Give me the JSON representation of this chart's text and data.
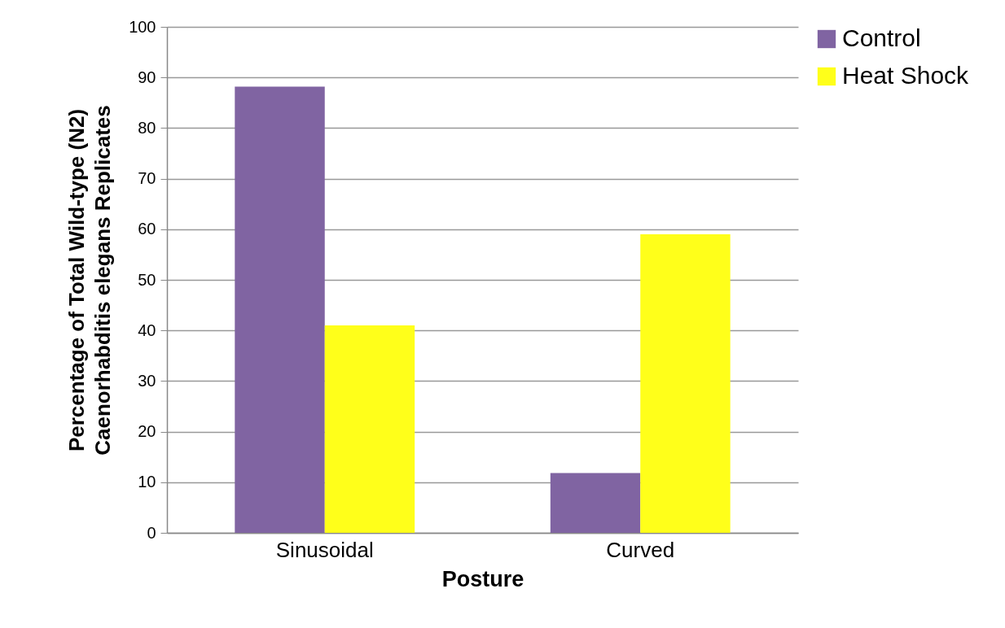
{
  "chart_data": {
    "type": "bar",
    "xlabel": "Posture",
    "ylabel": "Percentage of Total Wild-type (N2) Caenorhabditis elegans Replicates",
    "categories": [
      "Sinusoidal",
      "Curved"
    ],
    "series": [
      {
        "name": "Control",
        "color": "#8064a2",
        "values": [
          88.2,
          11.8
        ]
      },
      {
        "name": "Heat Shock",
        "color": "#ffff1a",
        "values": [
          41,
          59
        ]
      }
    ],
    "ylim": [
      0,
      100
    ],
    "yticks": [
      0,
      10,
      20,
      30,
      40,
      50,
      60,
      70,
      80,
      90,
      100
    ],
    "grid": "y",
    "legend": "right"
  }
}
